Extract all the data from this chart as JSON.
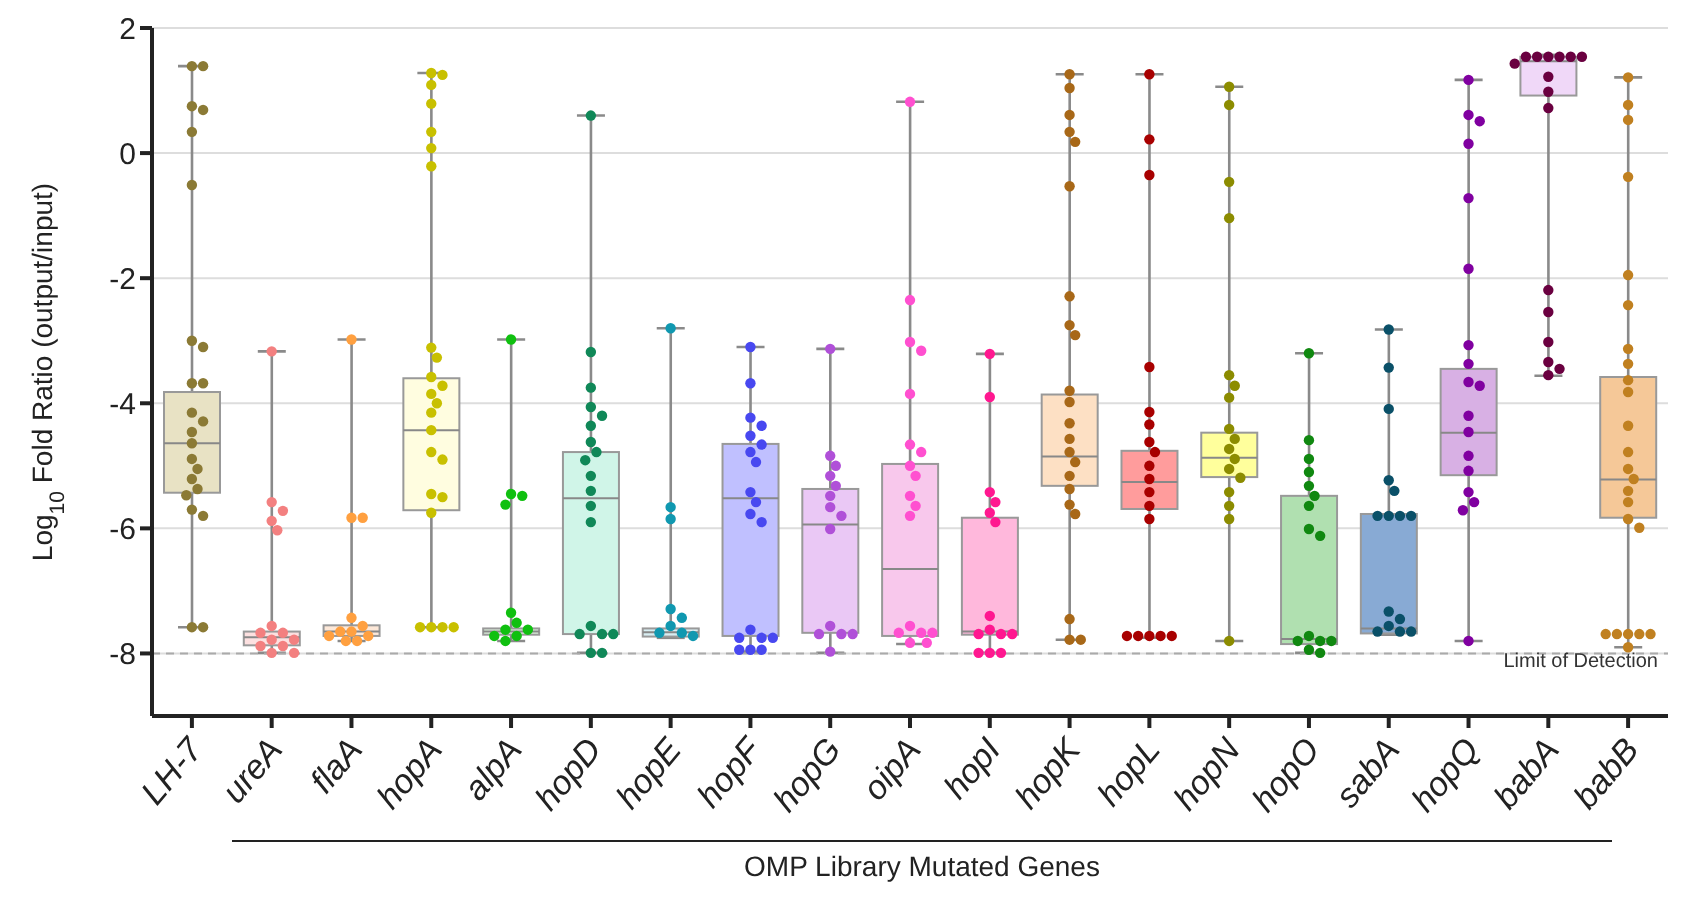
{
  "chart_data": {
    "type": "box",
    "ylabel": "Log$_{10}$ Fold Ratio (output/input)",
    "xlabel": "OMP Library Mutated Genes",
    "categories": [
      "LH-7",
      "ureA",
      "flaA",
      "hopA",
      "alpA",
      "hopD",
      "hopE",
      "hopF",
      "hopG",
      "oipA",
      "hopI",
      "hopK",
      "hopL",
      "hopN",
      "hopO",
      "sabA",
      "hopQ",
      "babA",
      "babB"
    ],
    "ylim": [
      -9,
      2
    ],
    "yticks": [
      -8,
      -6,
      -4,
      -2,
      0,
      2
    ],
    "grid": "y",
    "ref_lines": [
      {
        "axis": "y",
        "value": -8,
        "label": "Limit of Detection",
        "line_style": "dashed",
        "color": "#aaaaaa"
      }
    ],
    "series": [
      {
        "type": "box",
        "colors": [
          "#e8e2c4",
          "#fde0e0",
          "#fde8d8",
          "#fffde0",
          "#e0f5e0",
          "#d0f5e8",
          "#d8eef2",
          "#c0c0ff",
          "#eac8f5",
          "#f8c8ec",
          "#ffb8dc",
          "#fde0c4",
          "#ff9c9c",
          "#ffff9c",
          "#b0e0b0",
          "#88aad4",
          "#d8b0e4",
          "#f0d8f8",
          "#f5c898"
        ],
        "boxes": [
          {
            "low": -7.58,
            "q1": -5.43,
            "median": -4.64,
            "q3": -3.82,
            "high": 1.39
          },
          {
            "low": -7.99,
            "q1": -7.87,
            "median": -7.74,
            "q3": -7.65,
            "high": -3.17
          },
          {
            "low": -7.8,
            "q1": -7.72,
            "median": -7.65,
            "q3": -7.55,
            "high": -2.98
          },
          {
            "low": -7.58,
            "q1": -5.71,
            "median": -4.43,
            "q3": -3.6,
            "high": 1.28
          },
          {
            "low": -7.8,
            "q1": -7.7,
            "median": -7.65,
            "q3": -7.6,
            "high": -2.98
          },
          {
            "low": -7.99,
            "q1": -7.69,
            "median": -5.52,
            "q3": -4.78,
            "high": 0.6
          },
          {
            "low": -7.75,
            "q1": -7.73,
            "median": -7.66,
            "q3": -7.6,
            "high": -2.8
          },
          {
            "low": -7.97,
            "q1": -7.72,
            "median": -5.52,
            "q3": -4.65,
            "high": -3.1
          },
          {
            "low": -7.99,
            "q1": -7.67,
            "median": -5.94,
            "q3": -5.37,
            "high": -3.13
          },
          {
            "low": -7.85,
            "q1": -7.72,
            "median": -6.65,
            "q3": -4.97,
            "high": 0.82
          },
          {
            "low": -7.99,
            "q1": -7.7,
            "median": -7.65,
            "q3": -5.83,
            "high": -3.21
          },
          {
            "low": -7.78,
            "q1": -5.32,
            "median": -4.85,
            "q3": -3.86,
            "high": 1.26
          },
          {
            "low": -7.75,
            "q1": -5.69,
            "median": -5.26,
            "q3": -4.76,
            "high": 1.26
          },
          {
            "low": -7.8,
            "q1": -5.18,
            "median": -4.87,
            "q3": -4.47,
            "high": 1.06
          },
          {
            "low": -7.99,
            "q1": -7.85,
            "median": -7.77,
            "q3": -5.48,
            "high": -3.2
          },
          {
            "low": -7.7,
            "q1": -7.68,
            "median": -7.6,
            "q3": -5.77,
            "high": -2.82
          },
          {
            "low": -7.8,
            "q1": -5.15,
            "median": -4.47,
            "q3": -3.45,
            "high": 1.17
          },
          {
            "low": -3.56,
            "q1": 0.92,
            "median": 1.47,
            "q3": 1.54,
            "high": 1.57
          },
          {
            "low": -7.9,
            "q1": -5.83,
            "median": -5.22,
            "q3": -3.58,
            "high": 1.21
          }
        ]
      },
      {
        "type": "scatter",
        "color": "#8b7a35",
        "x": [
          "LH-7",
          "LH-7",
          "LH-7",
          "LH-7",
          "LH-7",
          "LH-7",
          "LH-7",
          "LH-7",
          "LH-7",
          "LH-7",
          "LH-7",
          "LH-7",
          "LH-7",
          "LH-7",
          "LH-7",
          "LH-7",
          "LH-7",
          "LH-7",
          "LH-7",
          "LH-7",
          "LH-7",
          "LH-7",
          "LH-7"
        ],
        "values": [
          1.39,
          1.39,
          0.75,
          0.69,
          0.34,
          -0.51,
          -3.0,
          -3.1,
          -3.68,
          -3.68,
          -4.15,
          -4.29,
          -4.46,
          -4.64,
          -4.89,
          -5.05,
          -5.21,
          -5.37,
          -5.47,
          -5.7,
          -5.8,
          -7.58,
          -7.58
        ]
      },
      {
        "type": "scatter",
        "color": "#f38080",
        "x": [
          "ureA",
          "ureA",
          "ureA",
          "ureA",
          "ureA",
          "ureA",
          "ureA",
          "ureA",
          "ureA",
          "ureA",
          "ureA",
          "ureA",
          "ureA",
          "ureA"
        ],
        "values": [
          -3.17,
          -5.58,
          -5.72,
          -5.88,
          -6.03,
          -7.56,
          -7.67,
          -7.67,
          -7.78,
          -7.78,
          -7.88,
          -7.88,
          -7.99,
          -7.99
        ]
      },
      {
        "type": "scatter",
        "color": "#ffa040",
        "x": [
          "flaA",
          "flaA",
          "flaA",
          "flaA",
          "flaA",
          "flaA",
          "flaA",
          "flaA",
          "flaA",
          "flaA",
          "flaA"
        ],
        "values": [
          -2.98,
          -5.83,
          -5.83,
          -7.43,
          -7.56,
          -7.65,
          -7.65,
          -7.72,
          -7.72,
          -7.8,
          -7.8
        ]
      },
      {
        "type": "scatter",
        "color": "#c8c000",
        "x": [
          "hopA",
          "hopA",
          "hopA",
          "hopA",
          "hopA",
          "hopA",
          "hopA",
          "hopA",
          "hopA",
          "hopA",
          "hopA",
          "hopA",
          "hopA",
          "hopA",
          "hopA",
          "hopA",
          "hopA",
          "hopA",
          "hopA",
          "hopA",
          "hopA",
          "hopA",
          "hopA",
          "hopA"
        ],
        "values": [
          1.28,
          1.25,
          1.09,
          0.79,
          0.34,
          0.08,
          -0.21,
          -3.11,
          -3.27,
          -3.58,
          -3.72,
          -3.85,
          -4.0,
          -4.15,
          -4.43,
          -4.78,
          -4.9,
          -5.45,
          -5.5,
          -5.75,
          -7.58,
          -7.58,
          -7.58,
          -7.58
        ]
      },
      {
        "type": "scatter",
        "color": "#10c010",
        "x": [
          "alpA",
          "alpA",
          "alpA",
          "alpA",
          "alpA",
          "alpA",
          "alpA",
          "alpA",
          "alpA",
          "alpA",
          "alpA"
        ],
        "values": [
          -2.98,
          -5.45,
          -5.48,
          -5.62,
          -7.35,
          -7.51,
          -7.62,
          -7.62,
          -7.72,
          -7.72,
          -7.8
        ]
      },
      {
        "type": "scatter",
        "color": "#108858",
        "x": [
          "hopD",
          "hopD",
          "hopD",
          "hopD",
          "hopD",
          "hopD",
          "hopD",
          "hopD",
          "hopD",
          "hopD",
          "hopD",
          "hopD",
          "hopD",
          "hopD",
          "hopD",
          "hopD",
          "hopD",
          "hopD",
          "hopD"
        ],
        "values": [
          0.6,
          -3.18,
          -3.75,
          -4.06,
          -4.2,
          -4.36,
          -4.62,
          -4.78,
          -4.91,
          -5.16,
          -5.4,
          -5.64,
          -5.9,
          -7.56,
          -7.69,
          -7.69,
          -7.69,
          -7.99,
          -7.99
        ]
      },
      {
        "type": "scatter",
        "color": "#1098b0",
        "x": [
          "hopE",
          "hopE",
          "hopE",
          "hopE",
          "hopE",
          "hopE",
          "hopE",
          "hopE",
          "hopE"
        ],
        "values": [
          -2.8,
          -5.66,
          -5.85,
          -7.29,
          -7.43,
          -7.56,
          -7.67,
          -7.67,
          -7.72
        ]
      },
      {
        "type": "scatter",
        "color": "#4848f0",
        "x": [
          "hopF",
          "hopF",
          "hopF",
          "hopF",
          "hopF",
          "hopF",
          "hopF",
          "hopF",
          "hopF",
          "hopF",
          "hopF",
          "hopF",
          "hopF",
          "hopF",
          "hopF",
          "hopF",
          "hopF",
          "hopF",
          "hopF"
        ],
        "values": [
          -3.1,
          -3.68,
          -4.23,
          -4.36,
          -4.52,
          -4.66,
          -4.78,
          -4.94,
          -5.42,
          -5.58,
          -5.77,
          -5.9,
          -7.62,
          -7.75,
          -7.75,
          -7.75,
          -7.94,
          -7.94,
          -7.94
        ]
      },
      {
        "type": "scatter",
        "color": "#b050d8",
        "x": [
          "hopG",
          "hopG",
          "hopG",
          "hopG",
          "hopG",
          "hopG",
          "hopG",
          "hopG",
          "hopG",
          "hopG",
          "hopG",
          "hopG",
          "hopG",
          "hopG"
        ],
        "values": [
          -3.13,
          -4.84,
          -5.0,
          -5.16,
          -5.32,
          -5.48,
          -5.66,
          -5.8,
          -6.01,
          -7.56,
          -7.69,
          -7.69,
          -7.69,
          -7.97
        ]
      },
      {
        "type": "scatter",
        "color": "#ff50d0",
        "x": [
          "oipA",
          "oipA",
          "oipA",
          "oipA",
          "oipA",
          "oipA",
          "oipA",
          "oipA",
          "oipA",
          "oipA",
          "oipA",
          "oipA",
          "oipA",
          "oipA",
          "oipA",
          "oipA",
          "oipA",
          "oipA"
        ],
        "values": [
          0.82,
          -2.35,
          -3.02,
          -3.16,
          -3.85,
          -4.66,
          -4.78,
          -5.0,
          -5.16,
          -5.48,
          -5.64,
          -5.8,
          -7.56,
          -7.67,
          -7.67,
          -7.67,
          -7.83,
          -7.83
        ]
      },
      {
        "type": "scatter",
        "color": "#ff1890",
        "x": [
          "hopI",
          "hopI",
          "hopI",
          "hopI",
          "hopI",
          "hopI",
          "hopI",
          "hopI",
          "hopI",
          "hopI",
          "hopI",
          "hopI",
          "hopI",
          "hopI"
        ],
        "values": [
          -3.21,
          -3.9,
          -5.42,
          -5.58,
          -5.75,
          -5.9,
          -7.4,
          -7.62,
          -7.69,
          -7.69,
          -7.69,
          -7.99,
          -7.99,
          -7.99
        ]
      },
      {
        "type": "scatter",
        "color": "#a86818",
        "x": [
          "hopK",
          "hopK",
          "hopK",
          "hopK",
          "hopK",
          "hopK",
          "hopK",
          "hopK",
          "hopK",
          "hopK",
          "hopK",
          "hopK",
          "hopK",
          "hopK",
          "hopK",
          "hopK",
          "hopK",
          "hopK",
          "hopK",
          "hopK",
          "hopK",
          "hopK"
        ],
        "values": [
          1.26,
          1.04,
          0.61,
          0.34,
          0.18,
          -0.53,
          -2.29,
          -2.75,
          -2.91,
          -3.8,
          -3.98,
          -4.32,
          -4.57,
          -4.78,
          -4.94,
          -5.16,
          -5.37,
          -5.62,
          -5.77,
          -7.45,
          -7.78,
          -7.78
        ]
      },
      {
        "type": "scatter",
        "color": "#a80000",
        "x": [
          "hopL",
          "hopL",
          "hopL",
          "hopL",
          "hopL",
          "hopL",
          "hopL",
          "hopL",
          "hopL",
          "hopL",
          "hopL",
          "hopL",
          "hopL",
          "hopL",
          "hopL",
          "hopL",
          "hopL",
          "hopL"
        ],
        "values": [
          1.26,
          0.22,
          -0.35,
          -3.42,
          -4.14,
          -4.34,
          -4.62,
          -4.78,
          -5.0,
          -5.21,
          -5.42,
          -5.64,
          -5.85,
          -7.72,
          -7.72,
          -7.72,
          -7.72,
          -7.72
        ]
      },
      {
        "type": "scatter",
        "color": "#8c8c00",
        "x": [
          "hopN",
          "hopN",
          "hopN",
          "hopN",
          "hopN",
          "hopN",
          "hopN",
          "hopN",
          "hopN",
          "hopN",
          "hopN",
          "hopN",
          "hopN",
          "hopN",
          "hopN",
          "hopN",
          "hopN"
        ],
        "values": [
          1.06,
          0.77,
          -0.46,
          -1.04,
          -3.55,
          -3.72,
          -3.91,
          -4.41,
          -4.57,
          -4.73,
          -4.89,
          -5.05,
          -5.19,
          -5.42,
          -5.64,
          -5.85,
          -7.8
        ]
      },
      {
        "type": "scatter",
        "color": "#108810",
        "x": [
          "hopO",
          "hopO",
          "hopO",
          "hopO",
          "hopO",
          "hopO",
          "hopO",
          "hopO",
          "hopO",
          "hopO",
          "hopO",
          "hopO",
          "hopO",
          "hopO",
          "hopO"
        ],
        "values": [
          -3.2,
          -4.59,
          -4.89,
          -5.1,
          -5.32,
          -5.48,
          -5.64,
          -6.01,
          -6.12,
          -7.72,
          -7.8,
          -7.8,
          -7.8,
          -7.94,
          -7.99
        ]
      },
      {
        "type": "scatter",
        "color": "#0a5068",
        "x": [
          "sabA",
          "sabA",
          "sabA",
          "sabA",
          "sabA",
          "sabA",
          "sabA",
          "sabA",
          "sabA",
          "sabA",
          "sabA",
          "sabA",
          "sabA",
          "sabA",
          "sabA"
        ],
        "values": [
          -2.82,
          -3.43,
          -4.09,
          -5.23,
          -5.4,
          -5.8,
          -5.8,
          -5.8,
          -5.8,
          -7.33,
          -7.45,
          -7.56,
          -7.65,
          -7.65,
          -7.65
        ]
      },
      {
        "type": "scatter",
        "color": "#8000a0",
        "x": [
          "hopQ",
          "hopQ",
          "hopQ",
          "hopQ",
          "hopQ",
          "hopQ",
          "hopQ",
          "hopQ",
          "hopQ",
          "hopQ",
          "hopQ",
          "hopQ",
          "hopQ",
          "hopQ",
          "hopQ",
          "hopQ",
          "hopQ",
          "hopQ"
        ],
        "values": [
          1.17,
          0.61,
          0.51,
          0.15,
          -0.72,
          -1.85,
          -3.07,
          -3.37,
          -3.66,
          -3.72,
          -4.2,
          -4.46,
          -4.84,
          -5.08,
          -5.42,
          -5.58,
          -5.71,
          -7.8
        ]
      },
      {
        "type": "scatter",
        "color": "#6a0040",
        "x": [
          "babA",
          "babA",
          "babA",
          "babA",
          "babA",
          "babA",
          "babA",
          "babA",
          "babA",
          "babA",
          "babA",
          "babA",
          "babA",
          "babA",
          "babA",
          "babA"
        ],
        "values": [
          1.54,
          1.54,
          1.54,
          1.54,
          1.54,
          1.54,
          1.43,
          1.22,
          0.98,
          0.72,
          -2.19,
          -2.54,
          -3.02,
          -3.34,
          -3.45,
          -3.55
        ]
      },
      {
        "type": "scatter",
        "color": "#c08020",
        "x": [
          "babB",
          "babB",
          "babB",
          "babB",
          "babB",
          "babB",
          "babB",
          "babB",
          "babB",
          "babB",
          "babB",
          "babB",
          "babB",
          "babB",
          "babB",
          "babB",
          "babB",
          "babB",
          "babB",
          "babB",
          "babB",
          "babB",
          "babB",
          "babB"
        ],
        "values": [
          1.21,
          0.77,
          0.53,
          -0.38,
          -1.95,
          -2.43,
          -3.13,
          -3.37,
          -3.63,
          -3.82,
          -4.36,
          -4.78,
          -5.05,
          -5.21,
          -5.4,
          -5.58,
          -5.85,
          -5.99,
          -7.69,
          -7.69,
          -7.69,
          -7.69,
          -7.69,
          -7.9
        ]
      }
    ]
  }
}
